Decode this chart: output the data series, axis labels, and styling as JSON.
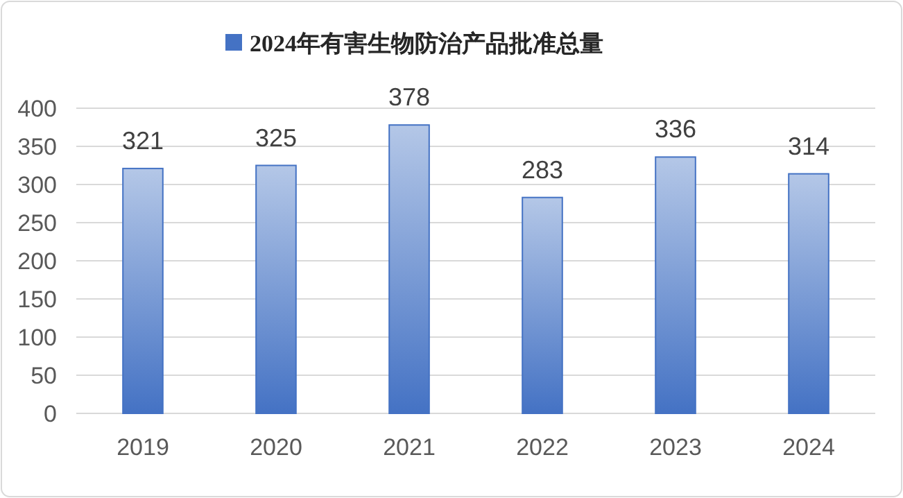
{
  "chart_data": {
    "type": "bar",
    "categories": [
      "2019",
      "2020",
      "2021",
      "2022",
      "2023",
      "2024"
    ],
    "series": [
      {
        "name": "2024年有害生物防治产品批准总量",
        "color": "#4472c4",
        "values": [
          321,
          325,
          378,
          283,
          336,
          314
        ]
      }
    ],
    "ylim": [
      0,
      400
    ],
    "yticks": [
      0,
      50,
      100,
      150,
      200,
      250,
      300,
      350,
      400
    ],
    "grid": "y",
    "legend": "top",
    "data_labels": true
  }
}
